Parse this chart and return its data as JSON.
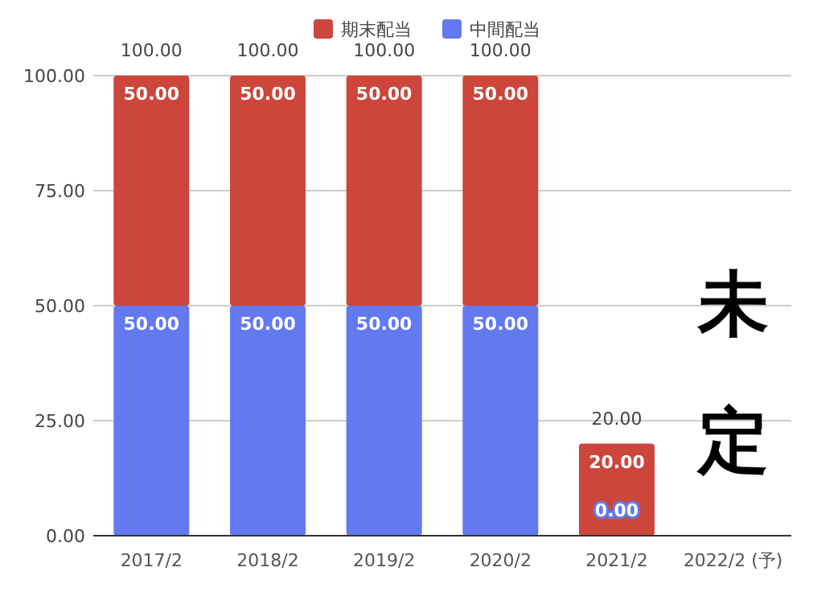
{
  "chart_data": {
    "type": "bar",
    "stacked": true,
    "categories": [
      "2017/2",
      "2018/2",
      "2019/2",
      "2020/2",
      "2021/2",
      "2022/2 (予)"
    ],
    "series": [
      {
        "name": "中間配当",
        "color": "#6279f0",
        "values": [
          50,
          50,
          50,
          50,
          0,
          null
        ],
        "value_labels": [
          "50.00",
          "50.00",
          "50.00",
          "50.00",
          "0.00",
          null
        ]
      },
      {
        "name": "期末配当",
        "color": "#cc463b",
        "values": [
          50,
          50,
          50,
          50,
          20,
          null
        ],
        "value_labels": [
          "50.00",
          "50.00",
          "50.00",
          "50.00",
          "20.00",
          null
        ]
      }
    ],
    "totals": [
      "100.00",
      "100.00",
      "100.00",
      "100.00",
      "20.00",
      null
    ],
    "ylim": [
      0,
      100
    ],
    "yticks": [
      {
        "value": 0,
        "label": "0.00"
      },
      {
        "value": 25,
        "label": "25.00"
      },
      {
        "value": 50,
        "label": "50.00"
      },
      {
        "value": 75,
        "label": "75.00"
      },
      {
        "value": 100,
        "label": "100.00"
      }
    ],
    "grid": "y",
    "legend": "top",
    "annotations": [
      "未定"
    ]
  }
}
